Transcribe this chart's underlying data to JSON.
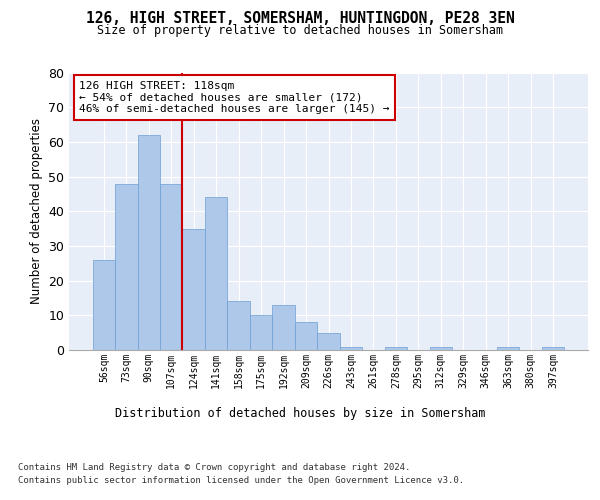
{
  "title": "126, HIGH STREET, SOMERSHAM, HUNTINGDON, PE28 3EN",
  "subtitle": "Size of property relative to detached houses in Somersham",
  "xlabel": "Distribution of detached houses by size in Somersham",
  "ylabel": "Number of detached properties",
  "categories": [
    "56sqm",
    "73sqm",
    "90sqm",
    "107sqm",
    "124sqm",
    "141sqm",
    "158sqm",
    "175sqm",
    "192sqm",
    "209sqm",
    "226sqm",
    "243sqm",
    "261sqm",
    "278sqm",
    "295sqm",
    "312sqm",
    "329sqm",
    "346sqm",
    "363sqm",
    "380sqm",
    "397sqm"
  ],
  "values": [
    26,
    48,
    62,
    48,
    35,
    44,
    14,
    10,
    13,
    8,
    5,
    1,
    0,
    1,
    0,
    1,
    0,
    0,
    1,
    0,
    1
  ],
  "bar_color": "#adc8e8",
  "bar_edge_color": "#6a9fd4",
  "background_color": "#e8eef8",
  "grid_color": "#ffffff",
  "vline_x": 3.5,
  "vline_color": "#cc0000",
  "annotation_text": "126 HIGH STREET: 118sqm\n← 54% of detached houses are smaller (172)\n46% of semi-detached houses are larger (145) →",
  "annotation_box_color": "#cc0000",
  "ylim": [
    0,
    80
  ],
  "yticks": [
    0,
    10,
    20,
    30,
    40,
    50,
    60,
    70,
    80
  ],
  "footer1": "Contains HM Land Registry data © Crown copyright and database right 2024.",
  "footer2": "Contains public sector information licensed under the Open Government Licence v3.0."
}
